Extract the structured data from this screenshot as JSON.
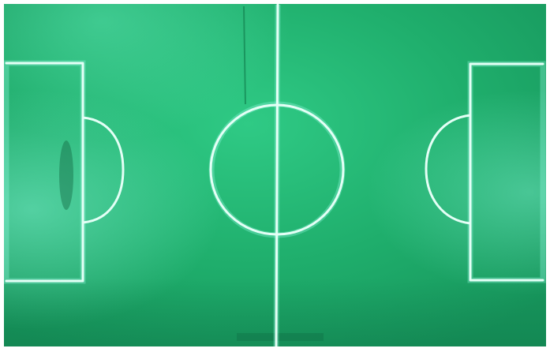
{
  "scene": {
    "subject": "soccer-pitch",
    "view": "top-down",
    "colors": {
      "turf_base": "#1fae6c",
      "turf_light": "#3fd69a",
      "turf_dark": "#148a55",
      "line": "#e4fff6",
      "border": "#ffffff"
    }
  }
}
